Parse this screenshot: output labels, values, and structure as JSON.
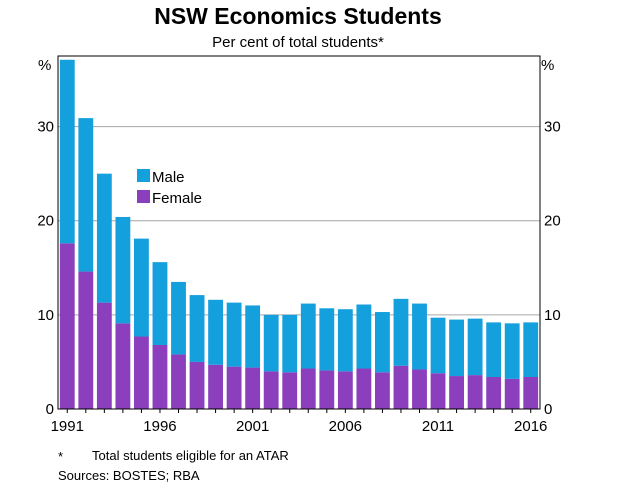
{
  "chart_data": {
    "type": "bar",
    "stacked": true,
    "title": "NSW Economics Students",
    "subtitle": "Per cent of total students*",
    "y_unit_left": "%",
    "y_unit_right": "%",
    "ylim": [
      0,
      37.5
    ],
    "yticks": [
      "0",
      "10",
      "20",
      "30"
    ],
    "ytick_values": [
      0,
      10,
      20,
      30
    ],
    "gridlines": true,
    "legend_placement": "upper-left inside plot",
    "categories": [
      1991,
      1992,
      1993,
      1994,
      1995,
      1996,
      1997,
      1998,
      1999,
      2000,
      2001,
      2002,
      2003,
      2004,
      2005,
      2006,
      2007,
      2008,
      2009,
      2010,
      2011,
      2012,
      2013,
      2014,
      2015,
      2016
    ],
    "xtick_labels": [
      "1991",
      "1996",
      "2001",
      "2006",
      "2011",
      "2016"
    ],
    "series": [
      {
        "name": "Female",
        "color": "#8b3fbd",
        "values": [
          17.6,
          14.6,
          11.3,
          9.1,
          7.7,
          6.8,
          5.8,
          5.0,
          4.7,
          4.5,
          4.4,
          4.0,
          3.9,
          4.3,
          4.1,
          4.0,
          4.3,
          3.9,
          4.6,
          4.2,
          3.8,
          3.5,
          3.6,
          3.4,
          3.2,
          3.4
        ]
      },
      {
        "name": "Male",
        "color": "#149fdd",
        "values": [
          19.5,
          16.3,
          13.7,
          11.3,
          10.4,
          8.8,
          7.7,
          7.1,
          6.9,
          6.8,
          6.6,
          6.0,
          6.1,
          6.9,
          6.6,
          6.6,
          6.8,
          6.4,
          7.1,
          7.0,
          5.9,
          6.0,
          6.0,
          5.8,
          5.9,
          5.8
        ]
      }
    ],
    "legend": [
      {
        "label": "Male",
        "color": "#149fdd"
      },
      {
        "label": "Female",
        "color": "#8b3fbd"
      }
    ],
    "footnote_marker": "*",
    "footnote_text": "Total students eligible for an ATAR",
    "sources": "Sources:  BOSTES; RBA"
  }
}
